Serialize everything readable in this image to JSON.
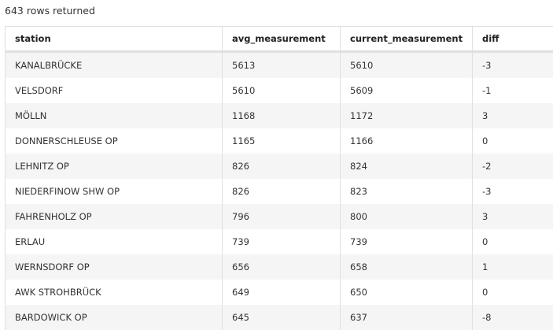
{
  "summary": "643 rows returned",
  "columns": [
    "station",
    "avg_measurement",
    "current_measurement",
    "diff"
  ],
  "rows": [
    [
      "KANALBRÜCKE",
      "5613",
      "5610",
      "-3"
    ],
    [
      "VELSDORF",
      "5610",
      "5609",
      "-1"
    ],
    [
      "MÖLLN",
      "1168",
      "1172",
      "3"
    ],
    [
      "DONNERSCHLEUSE OP",
      "1165",
      "1166",
      "0"
    ],
    [
      "LEHNITZ OP",
      "826",
      "824",
      "-2"
    ],
    [
      "NIEDERFINOW SHW OP",
      "826",
      "823",
      "-3"
    ],
    [
      "FAHRENHOLZ OP",
      "796",
      "800",
      "3"
    ],
    [
      "ERLAU",
      "739",
      "739",
      "0"
    ],
    [
      "WERNSDORF OP",
      "656",
      "658",
      "1"
    ],
    [
      "AWK STROHBRÜCK",
      "649",
      "650",
      "0"
    ],
    [
      "BARDOWICK OP",
      "645",
      "637",
      "-8"
    ]
  ]
}
